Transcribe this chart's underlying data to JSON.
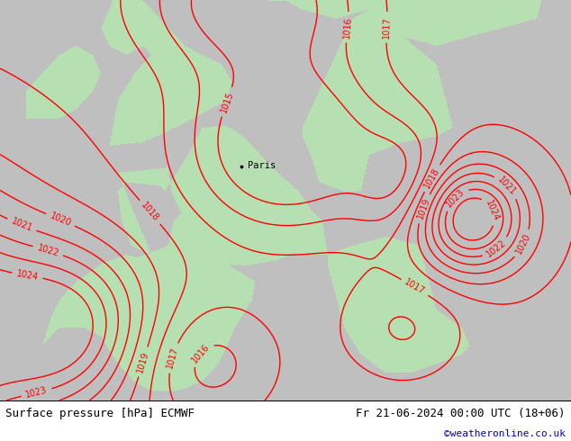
{
  "title_left": "Surface pressure [hPa] ECMWF",
  "title_right": "Fr 21-06-2024 00:00 UTC (18+06)",
  "credit": "©weatheronline.co.uk",
  "contour_color": "red",
  "contour_linewidth": 1.0,
  "label_fontsize": 7,
  "credit_color": "#0000cc",
  "pressure_levels": [
    1015,
    1016,
    1017,
    1018,
    1019,
    1020,
    1021,
    1022,
    1023,
    1024
  ],
  "paris_label": "Paris",
  "paris_lon": 2.35,
  "paris_lat": 48.85,
  "land_green": [
    0.72,
    0.88,
    0.7
  ],
  "sea_grey": [
    0.75,
    0.75,
    0.75
  ],
  "lon_min": -12,
  "lon_max": 22,
  "lat_min": 36,
  "lat_max": 58
}
